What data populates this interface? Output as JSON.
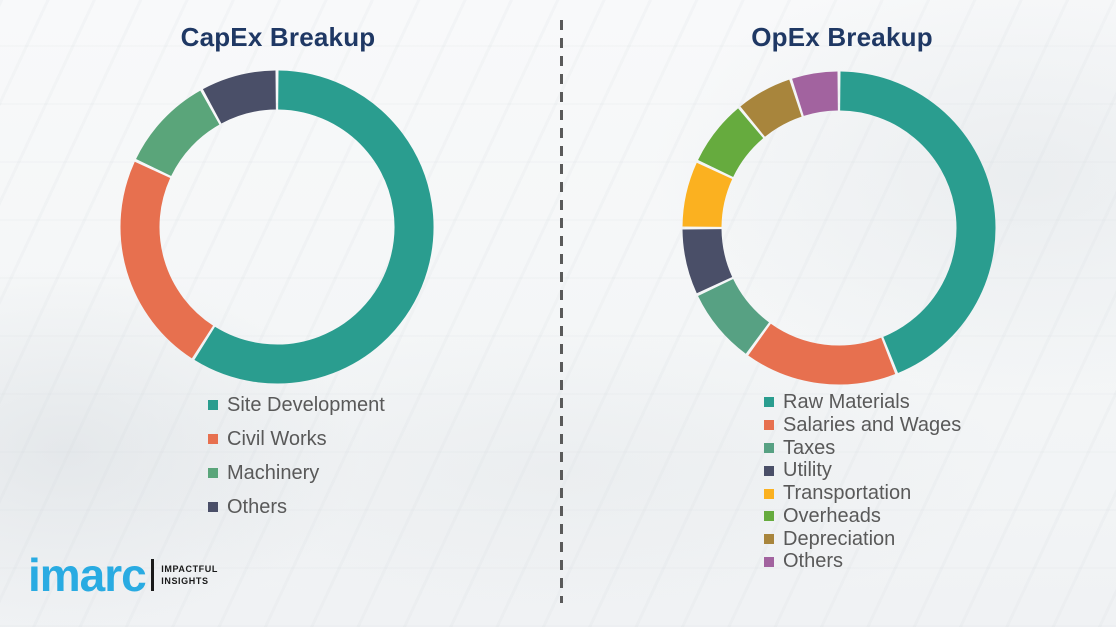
{
  "brand": {
    "name": "imarc",
    "tagline_line1": "IMPACTFUL",
    "tagline_line2": "INSIGHTS",
    "color": "#29abe2"
  },
  "colors": {
    "title": "#1f3864",
    "legend_text": "#595959",
    "divider": "#5a5a5a",
    "background": "#f5f6f7"
  },
  "chart_data": [
    {
      "type": "pie",
      "subtype": "donut",
      "title": "CapEx Breakup",
      "legend_position": "bottom-left",
      "data_labels_visible": false,
      "segments": [
        {
          "label": "Site Development",
          "value": 59,
          "color": "#2a9d8f"
        },
        {
          "label": "Civil Works",
          "value": 23,
          "color": "#e7704f"
        },
        {
          "label": "Machinery",
          "value": 10,
          "color": "#5aa57a"
        },
        {
          "label": "Others",
          "value": 8,
          "color": "#4a4f68"
        }
      ]
    },
    {
      "type": "pie",
      "subtype": "donut",
      "title": "OpEx Breakup",
      "legend_position": "bottom-left",
      "data_labels_visible": false,
      "segments": [
        {
          "label": "Raw Materials",
          "value": 44,
          "color": "#2a9d8f"
        },
        {
          "label": "Salaries and Wages",
          "value": 16,
          "color": "#e7704f"
        },
        {
          "label": "Taxes",
          "value": 8,
          "color": "#57a183"
        },
        {
          "label": "Utility",
          "value": 7,
          "color": "#4a4f68"
        },
        {
          "label": "Transportation",
          "value": 7,
          "color": "#fbb120"
        },
        {
          "label": "Overheads",
          "value": 7,
          "color": "#66ab3e"
        },
        {
          "label": "Depreciation",
          "value": 6,
          "color": "#a8853c"
        },
        {
          "label": "Others",
          "value": 5,
          "color": "#a2639f"
        }
      ]
    }
  ]
}
